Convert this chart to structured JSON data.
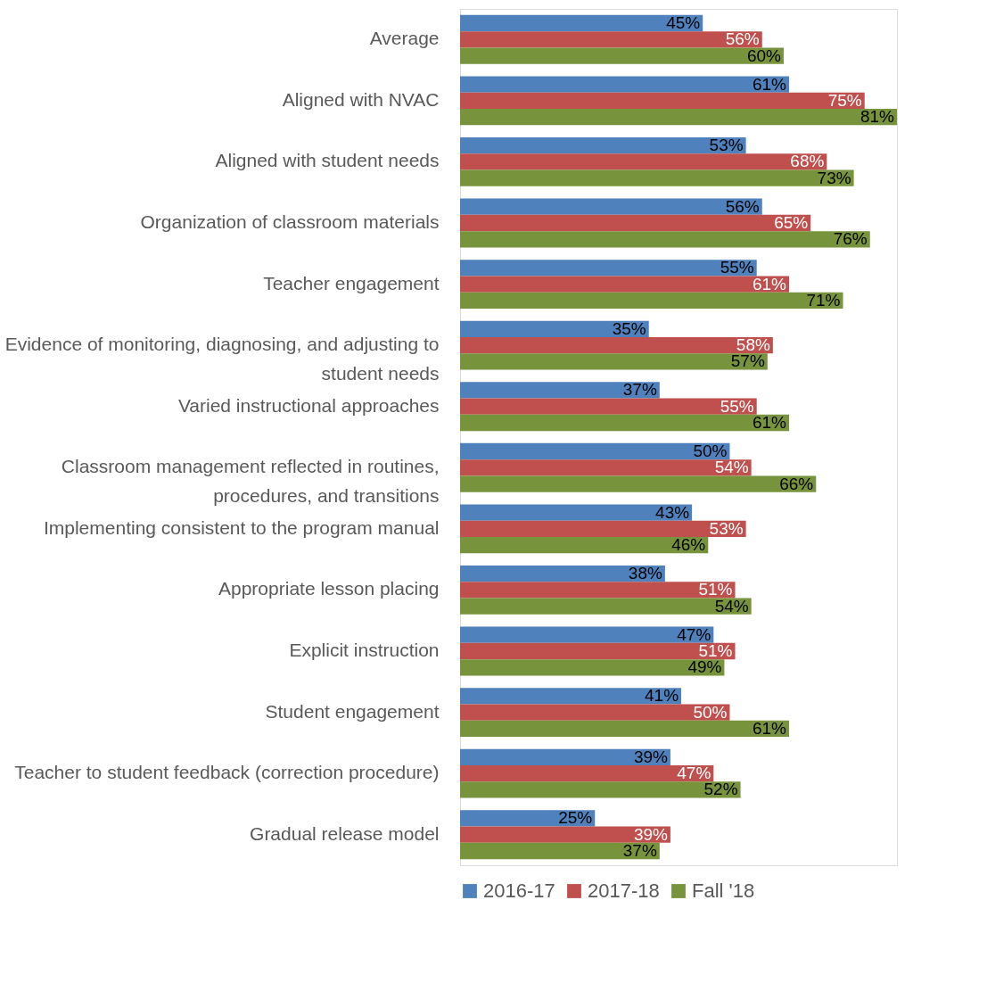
{
  "chart_data": {
    "type": "bar",
    "orientation": "horizontal",
    "legend": "bottom",
    "grid": false,
    "categories": [
      "Average",
      "Aligned with NVAC",
      "Aligned with student needs",
      "Organization of classroom materials",
      "Teacher engagement",
      "Evidence of monitoring, diagnosing, and adjusting to student needs",
      "Varied instructional approaches",
      "Classroom management reflected in routines, procedures, and transitions",
      "Implementing consistent to the program manual",
      "Appropriate lesson placing",
      "Explicit instruction",
      "Student engagement",
      "Teacher to student feedback (correction procedure)",
      "Gradual release model"
    ],
    "series": [
      {
        "name": "2016-17",
        "color": "#4f81bd",
        "values": [
          45,
          61,
          53,
          56,
          55,
          35,
          37,
          50,
          43,
          38,
          47,
          41,
          39,
          25
        ],
        "value_labels": [
          "45%",
          "61%",
          "53%",
          "56%",
          "55%",
          "35%",
          "37%",
          "50%",
          "43%",
          "38%",
          "47%",
          "41%",
          "39%",
          "25%"
        ]
      },
      {
        "name": "2017-18",
        "color": "#c0504d",
        "values": [
          56,
          75,
          68,
          65,
          61,
          58,
          55,
          54,
          53,
          51,
          51,
          50,
          47,
          39
        ],
        "value_labels": [
          "56%",
          "75%",
          "68%",
          "65%",
          "61%",
          "58%",
          "55%",
          "54%",
          "53%",
          "51%",
          "51%",
          "50%",
          "47%",
          "39%"
        ]
      },
      {
        "name": "Fall '18",
        "color": "#77933c",
        "values": [
          60,
          81,
          73,
          76,
          71,
          57,
          61,
          66,
          46,
          54,
          49,
          61,
          52,
          37
        ],
        "value_labels": [
          "60%",
          "81%",
          "73%",
          "76%",
          "71%",
          "57%",
          "61%",
          "66%",
          "46%",
          "54%",
          "49%",
          "61%",
          "52%",
          "37%"
        ]
      }
    ]
  }
}
